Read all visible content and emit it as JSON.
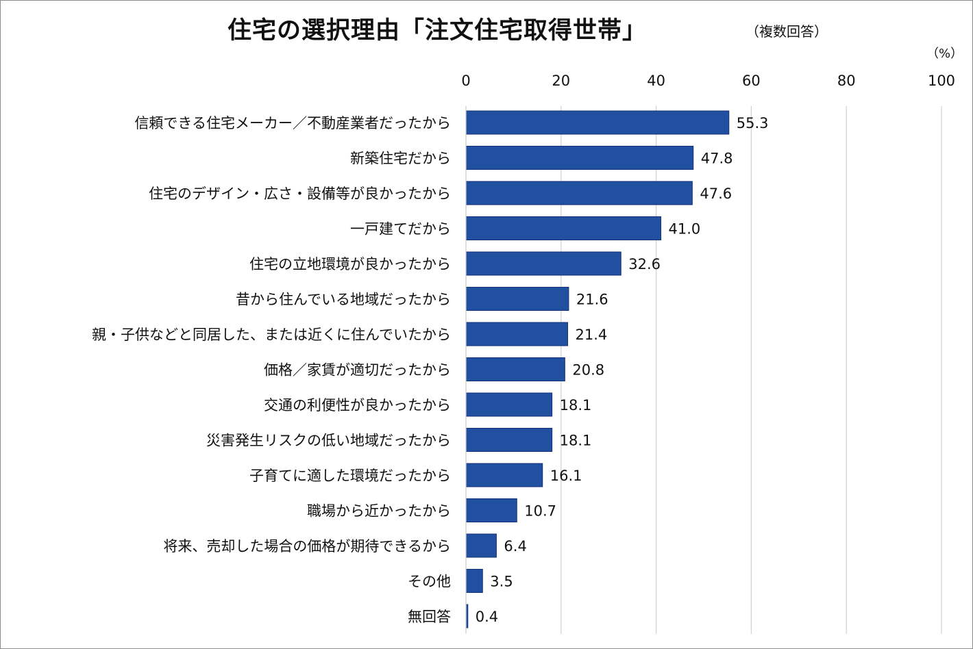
{
  "chart_data": {
    "type": "bar",
    "orientation": "horizontal",
    "title": "住宅の選択理由「注文住宅取得世帯」",
    "subtitle": "（複数回答）",
    "unit_label": "（%）",
    "xlim": [
      0,
      100
    ],
    "xticks": [
      0,
      20,
      40,
      60,
      80,
      100
    ],
    "grid": true,
    "bar_color": "#2150A0",
    "categories": [
      "信頼できる住宅メーカー／不動産業者だったから",
      "新築住宅だから",
      "住宅のデザイン・広さ・設備等が良かったから",
      "一戸建てだから",
      "住宅の立地環境が良かったから",
      "昔から住んでいる地域だったから",
      "親・子供などと同居した、または近くに住んでいたから",
      "価格／家賃が適切だったから",
      "交通の利便性が良かったから",
      "災害発生リスクの低い地域だったから",
      "子育てに適した環境だったから",
      "職場から近かったから",
      "将来、売却した場合の価格が期待できるから",
      "その他",
      "無回答"
    ],
    "values": [
      55.3,
      47.8,
      47.6,
      41.0,
      32.6,
      21.6,
      21.4,
      20.8,
      18.1,
      18.1,
      16.1,
      10.7,
      6.4,
      3.5,
      0.4
    ],
    "value_labels": [
      "55.3",
      "47.8",
      "47.6",
      "41.0",
      "32.6",
      "21.6",
      "21.4",
      "20.8",
      "18.1",
      "18.1",
      "16.1",
      "10.7",
      "6.4",
      "3.5",
      "0.4"
    ]
  }
}
